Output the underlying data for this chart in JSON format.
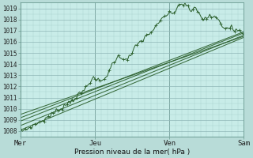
{
  "title": "",
  "xlabel": "Pression niveau de la mer( hPa )",
  "bg_color": "#b8dcd8",
  "plot_bg_color": "#c8ece8",
  "grid_major_color": "#90b8b8",
  "grid_minor_color": "#a8d0cc",
  "line_color": "#2a5e2a",
  "ylim_min": 1007.5,
  "ylim_max": 1019.5,
  "yticks": [
    1008,
    1009,
    1010,
    1011,
    1012,
    1013,
    1014,
    1015,
    1016,
    1017,
    1018,
    1019
  ],
  "xtick_labels": [
    "Mer",
    "Jeu",
    "Ven",
    "Sam"
  ],
  "xtick_positions": [
    0,
    1,
    2,
    3
  ],
  "ensemble_starts": [
    1008.1,
    1008.5,
    1008.9,
    1009.2,
    1009.5
  ],
  "ensemble_ends": [
    1016.4,
    1016.6,
    1016.8,
    1016.9,
    1016.5
  ]
}
